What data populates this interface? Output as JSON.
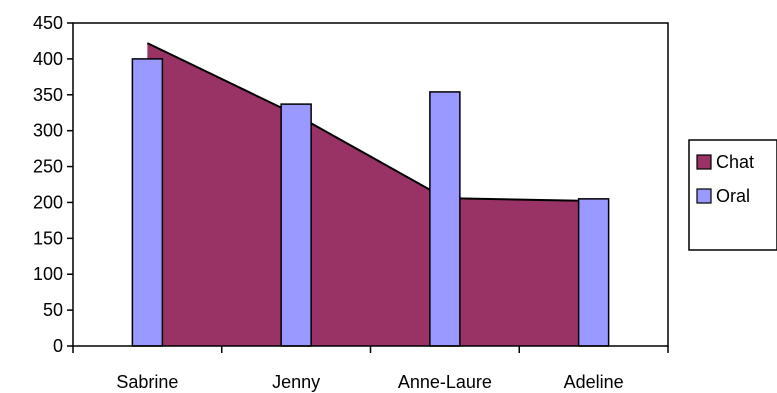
{
  "chart_data": {
    "type": "bar",
    "categories": [
      "Sabrine",
      "Jenny",
      "Anne-Laure",
      "Adeline"
    ],
    "series": [
      {
        "name": "Chat",
        "type": "area",
        "color": "#993366",
        "values": [
          422,
          322,
          206,
          202
        ]
      },
      {
        "name": "Oral",
        "type": "bar",
        "color": "#9999ff",
        "values": [
          400,
          337,
          354,
          205
        ]
      }
    ],
    "title": "",
    "xlabel": "",
    "ylabel": "",
    "ylim": [
      0,
      450
    ],
    "yticks": [
      "0",
      "50",
      "100",
      "150",
      "200",
      "250",
      "300",
      "350",
      "400",
      "450"
    ],
    "grid": false,
    "legend": "right"
  }
}
